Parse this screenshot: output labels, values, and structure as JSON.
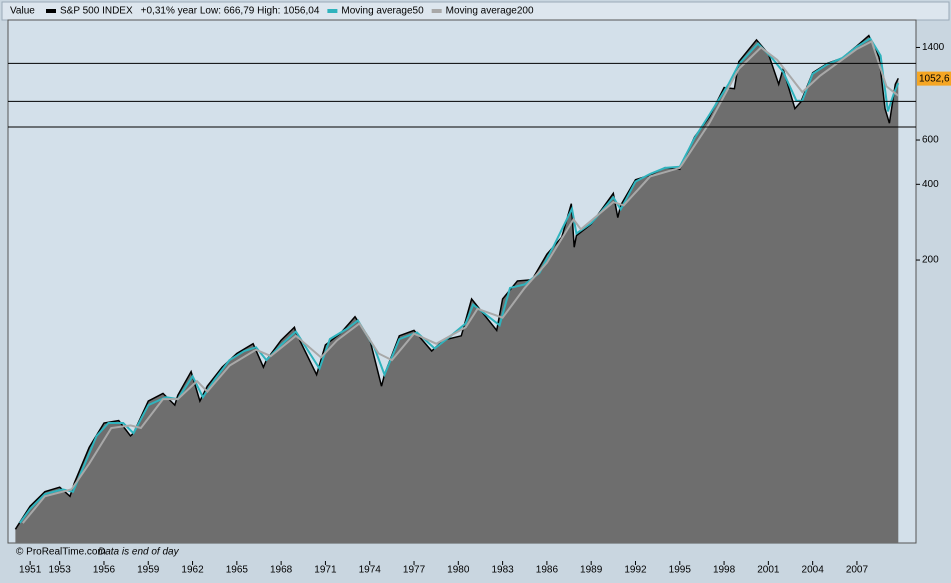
{
  "chart_data": {
    "type": "line",
    "legend_header": "Value",
    "footer_source": "© ProRealTime.com",
    "footer_note": "Data is end of day",
    "log_scale": true,
    "ylim": [
      15,
      1800
    ],
    "yticks": [
      200,
      400,
      600,
      1400
    ],
    "xlim": [
      1949.5,
      2011
    ],
    "xticks": [
      1951,
      1953,
      1956,
      1959,
      1962,
      1965,
      1968,
      1971,
      1974,
      1977,
      1980,
      1983,
      1986,
      1989,
      1992,
      1995,
      1998,
      2001,
      2004,
      2007
    ],
    "last_value": {
      "value": 1052.6,
      "label": "1052,6"
    },
    "hlines": [
      1210,
      855,
      676
    ],
    "series": [
      {
        "name": "S&P 500 INDEX",
        "note": "+0,31% year Low: 666,79 High: 1056,04",
        "color": "#000000",
        "fill": "#6e6e6e",
        "x": [
          1950.0,
          1951.0,
          1952.0,
          1953.0,
          1953.7,
          1954.0,
          1955.0,
          1956.0,
          1957.0,
          1957.8,
          1958.0,
          1959.0,
          1960.0,
          1960.8,
          1961.0,
          1961.9,
          1962.5,
          1963.0,
          1964.0,
          1965.0,
          1966.1,
          1966.8,
          1967.0,
          1968.0,
          1968.9,
          1969.0,
          1970.4,
          1971.0,
          1972.0,
          1973.0,
          1974.0,
          1974.8,
          1975.0,
          1976.0,
          1977.0,
          1978.2,
          1979.0,
          1980.2,
          1980.9,
          1982.6,
          1983.0,
          1984.0,
          1985.0,
          1986.0,
          1987.0,
          1987.65,
          1987.85,
          1988.0,
          1989.0,
          1990.5,
          1990.8,
          1991.0,
          1992.0,
          1993.0,
          1994.0,
          1995.0,
          1996.0,
          1997.0,
          1998.0,
          1998.7,
          1999.0,
          2000.2,
          2001.0,
          2001.7,
          2002.0,
          2002.8,
          2003.2,
          2004.0,
          2005.0,
          2006.0,
          2007.0,
          2007.8,
          2008.5,
          2008.9,
          2009.2,
          2009.6,
          2009.8
        ],
        "values": [
          17,
          21,
          24,
          25,
          23,
          26,
          36,
          45,
          46,
          40,
          41,
          55,
          59,
          53,
          58,
          72,
          55,
          63,
          75,
          85,
          93,
          75,
          80,
          96,
          108,
          103,
          70,
          92,
          102,
          119,
          97,
          63,
          70,
          100,
          105,
          87,
          96,
          100,
          140,
          105,
          140,
          165,
          167,
          211,
          246,
          335,
          225,
          250,
          278,
          368,
          295,
          330,
          417,
          435,
          466,
          459,
          616,
          740,
          970,
          960,
          1229,
          1500,
          1320,
          1000,
          1150,
          800,
          850,
          1110,
          1210,
          1270,
          1420,
          1560,
          1280,
          800,
          700,
          1000,
          1056
        ]
      },
      {
        "name": "Moving average50",
        "color": "#2fb3bd",
        "x": [
          1950.3,
          1951.0,
          1952.0,
          1953.2,
          1953.9,
          1954.5,
          1955.5,
          1956.3,
          1957.3,
          1958.0,
          1959.0,
          1960.2,
          1961.0,
          1962.0,
          1962.7,
          1963.5,
          1964.5,
          1965.5,
          1966.3,
          1967.0,
          1968.0,
          1969.0,
          1970.6,
          1971.3,
          1972.5,
          1973.2,
          1974.3,
          1975.0,
          1976.0,
          1977.2,
          1978.4,
          1979.5,
          1980.5,
          1981.0,
          1982.8,
          1983.5,
          1984.5,
          1985.5,
          1986.5,
          1987.7,
          1988.0,
          1989.0,
          1990.5,
          1991.0,
          1992.0,
          1993.0,
          1994.0,
          1995.0,
          1996.0,
          1997.0,
          1998.3,
          1999.0,
          2000.3,
          2001.2,
          2002.0,
          2002.9,
          2003.3,
          2004.0,
          2005.0,
          2006.0,
          2007.0,
          2007.9,
          2008.6,
          2009.1,
          2009.5,
          2009.8
        ],
        "values": [
          18,
          20.5,
          23.5,
          24.5,
          24,
          29,
          40,
          45,
          45,
          41,
          53,
          57,
          56,
          69,
          57,
          67,
          80,
          87,
          90,
          80,
          92,
          104,
          74,
          97,
          107,
          115,
          90,
          70,
          97,
          103,
          89,
          100,
          112,
          133,
          110,
          155,
          160,
          178,
          230,
          320,
          255,
          280,
          355,
          318,
          410,
          440,
          465,
          470,
          610,
          755,
          1000,
          1200,
          1450,
          1280,
          1120,
          860,
          860,
          1100,
          1200,
          1270,
          1410,
          1520,
          1300,
          780,
          920,
          1010
        ]
      },
      {
        "name": "Moving average200",
        "color": "#a8a8a8",
        "x": [
          1950.5,
          1952.0,
          1953.8,
          1955.0,
          1956.5,
          1957.8,
          1958.5,
          1960.0,
          1961.0,
          1962.3,
          1963.0,
          1964.5,
          1966.3,
          1967.3,
          1969.0,
          1970.7,
          1971.8,
          1973.3,
          1974.6,
          1975.5,
          1977.0,
          1978.5,
          1980.5,
          1981.3,
          1983.0,
          1984.5,
          1986.0,
          1987.8,
          1988.3,
          1990.5,
          1991.2,
          1993.0,
          1995.0,
          1997.0,
          1999.0,
          2000.5,
          2001.6,
          2003.3,
          2004.5,
          2007.0,
          2008.0,
          2009.0,
          2009.8
        ],
        "values": [
          18,
          23,
          24.5,
          31,
          43,
          44,
          43,
          56,
          56,
          66,
          60,
          76,
          88,
          83,
          100,
          82,
          96,
          112,
          85,
          80,
          102,
          93,
          108,
          128,
          118,
          155,
          195,
          290,
          265,
          340,
          330,
          430,
          465,
          700,
          1150,
          1400,
          1250,
          930,
          1080,
          1380,
          1480,
          980,
          900
        ]
      }
    ]
  }
}
